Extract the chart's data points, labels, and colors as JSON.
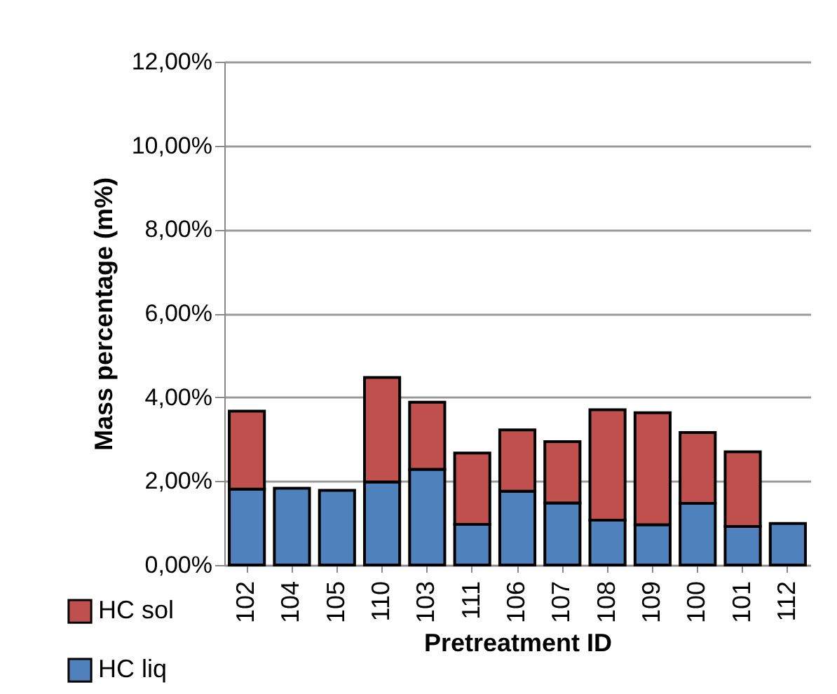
{
  "chart_data": {
    "type": "bar",
    "stacked": true,
    "xlabel": "Pretreatment ID",
    "ylabel": "Mass percentage (m%)",
    "categories": [
      "102",
      "104",
      "105",
      "110",
      "103",
      "111",
      "106",
      "107",
      "108",
      "109",
      "100",
      "101",
      "112"
    ],
    "series": [
      {
        "name": "HC liq",
        "color": "#4f81bd",
        "values": [
          1.81,
          1.83,
          1.78,
          1.98,
          2.28,
          0.97,
          1.76,
          1.48,
          1.07,
          0.96,
          1.47,
          0.92,
          0.99
        ]
      },
      {
        "name": "HC sol",
        "color": "#c0504d",
        "values": [
          1.86,
          null,
          null,
          2.49,
          1.6,
          1.7,
          1.46,
          1.46,
          2.63,
          2.67,
          1.69,
          1.78,
          null
        ]
      }
    ],
    "ylim": [
      0,
      12
    ],
    "yticks": [
      {
        "value": 0,
        "label": "0,00%"
      },
      {
        "value": 2,
        "label": "2,00%"
      },
      {
        "value": 4,
        "label": "4,00%"
      },
      {
        "value": 6,
        "label": "6,00%"
      },
      {
        "value": 8,
        "label": "8,00%"
      },
      {
        "value": 10,
        "label": "10,00%"
      },
      {
        "value": 12,
        "label": "12,00%"
      }
    ],
    "grid": "y",
    "legend": "bottom left"
  }
}
